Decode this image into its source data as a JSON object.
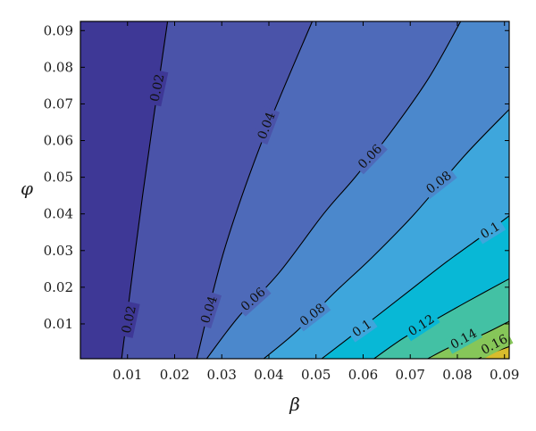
{
  "chart_data": {
    "type": "contour",
    "xlabel": "β",
    "ylabel": "φ",
    "xlim": [
      0.0,
      0.091
    ],
    "ylim": [
      0.0005,
      0.0925
    ],
    "x_ticks": [
      0.01,
      0.02,
      0.03,
      0.04,
      0.05,
      0.06,
      0.07,
      0.08,
      0.09
    ],
    "x_tick_labels": [
      "0.01",
      "0.02",
      "0.03",
      "0.04",
      "0.05",
      "0.06",
      "0.07",
      "0.08",
      "0.09"
    ],
    "y_ticks": [
      0.01,
      0.02,
      0.03,
      0.04,
      0.05,
      0.06,
      0.07,
      0.08,
      0.09
    ],
    "y_tick_labels": [
      "0.01",
      "0.02",
      "0.03",
      "0.04",
      "0.05",
      "0.06",
      "0.07",
      "0.08",
      "0.09"
    ],
    "levels": [
      0.02,
      0.04,
      0.06,
      0.08,
      0.1,
      0.12,
      0.14,
      0.16
    ],
    "level_labels": [
      "0.02",
      "0.04",
      "0.06",
      "0.08",
      "0.1",
      "0.12",
      "0.14",
      "0.16"
    ],
    "colorscale": [
      "#3e3896",
      "#4a53a9",
      "#4e6ab9",
      "#4b88cc",
      "#3ea6dc",
      "#08b8d6",
      "#43c1a4",
      "#86c659",
      "#d8bc2d",
      "#f9d72e"
    ],
    "grid": false,
    "contour_lines": [
      {
        "level": 0.02,
        "points": [
          [
            0.00875,
            0.0005
          ],
          [
            0.0132,
            0.045
          ],
          [
            0.0185,
            0.0925
          ]
        ]
      },
      {
        "level": 0.04,
        "points": [
          [
            0.0247,
            0.0005
          ],
          [
            0.0305,
            0.03
          ],
          [
            0.0386,
            0.06
          ],
          [
            0.0492,
            0.0925
          ]
        ]
      },
      {
        "level": 0.06,
        "points": [
          [
            0.0268,
            0.0005
          ],
          [
            0.0336,
            0.012
          ],
          [
            0.0422,
            0.024
          ],
          [
            0.0516,
            0.04
          ],
          [
            0.0583,
            0.05
          ],
          [
            0.0657,
            0.062
          ],
          [
            0.0739,
            0.077
          ],
          [
            0.0807,
            0.0925
          ]
        ]
      },
      {
        "level": 0.08,
        "points": [
          [
            0.0389,
            0.0005
          ],
          [
            0.0459,
            0.008
          ],
          [
            0.0535,
            0.018
          ],
          [
            0.0618,
            0.028
          ],
          [
            0.0709,
            0.04
          ],
          [
            0.0816,
            0.056
          ],
          [
            0.091,
            0.0685
          ]
        ]
      },
      {
        "level": 0.1,
        "points": [
          [
            0.0512,
            0.0005
          ],
          [
            0.0568,
            0.006
          ],
          [
            0.0628,
            0.012
          ],
          [
            0.0698,
            0.019
          ],
          [
            0.0778,
            0.027
          ],
          [
            0.0864,
            0.035
          ],
          [
            0.091,
            0.0395
          ]
        ]
      },
      {
        "level": 0.12,
        "points": [
          [
            0.0623,
            0.0005
          ],
          [
            0.0684,
            0.006
          ],
          [
            0.0751,
            0.011
          ],
          [
            0.082,
            0.016
          ],
          [
            0.091,
            0.0223
          ]
        ]
      },
      {
        "level": 0.14,
        "points": [
          [
            0.0737,
            0.0005
          ],
          [
            0.079,
            0.004
          ],
          [
            0.0852,
            0.007
          ],
          [
            0.091,
            0.0107
          ]
        ]
      },
      {
        "level": 0.16,
        "points": [
          [
            0.0844,
            0.0005
          ],
          [
            0.0876,
            0.0022
          ],
          [
            0.091,
            0.0038
          ]
        ]
      }
    ],
    "contour_label_positions": [
      {
        "text": "0.02",
        "x": 0.0102,
        "y": 0.0112,
        "angle": -78
      },
      {
        "text": "0.02",
        "x": 0.0162,
        "y": 0.0744,
        "angle": -78
      },
      {
        "text": "0.04",
        "x": 0.0272,
        "y": 0.0139,
        "angle": -72
      },
      {
        "text": "0.04",
        "x": 0.0394,
        "y": 0.0641,
        "angle": -69
      },
      {
        "text": "0.06",
        "x": 0.0366,
        "y": 0.0168,
        "angle": -42
      },
      {
        "text": "0.06",
        "x": 0.0614,
        "y": 0.0557,
        "angle": -46
      },
      {
        "text": "0.08",
        "x": 0.0492,
        "y": 0.0126,
        "angle": -38
      },
      {
        "text": "0.08",
        "x": 0.076,
        "y": 0.0487,
        "angle": -38
      },
      {
        "text": "0.1",
        "x": 0.0597,
        "y": 0.0089,
        "angle": -35
      },
      {
        "text": "0.1",
        "x": 0.0869,
        "y": 0.0356,
        "angle": -32
      },
      {
        "text": "0.12",
        "x": 0.0723,
        "y": 0.0097,
        "angle": -33
      },
      {
        "text": "0.14",
        "x": 0.0813,
        "y": 0.006,
        "angle": -29
      },
      {
        "text": "0.16",
        "x": 0.0878,
        "y": 0.0045,
        "angle": -28
      }
    ]
  }
}
